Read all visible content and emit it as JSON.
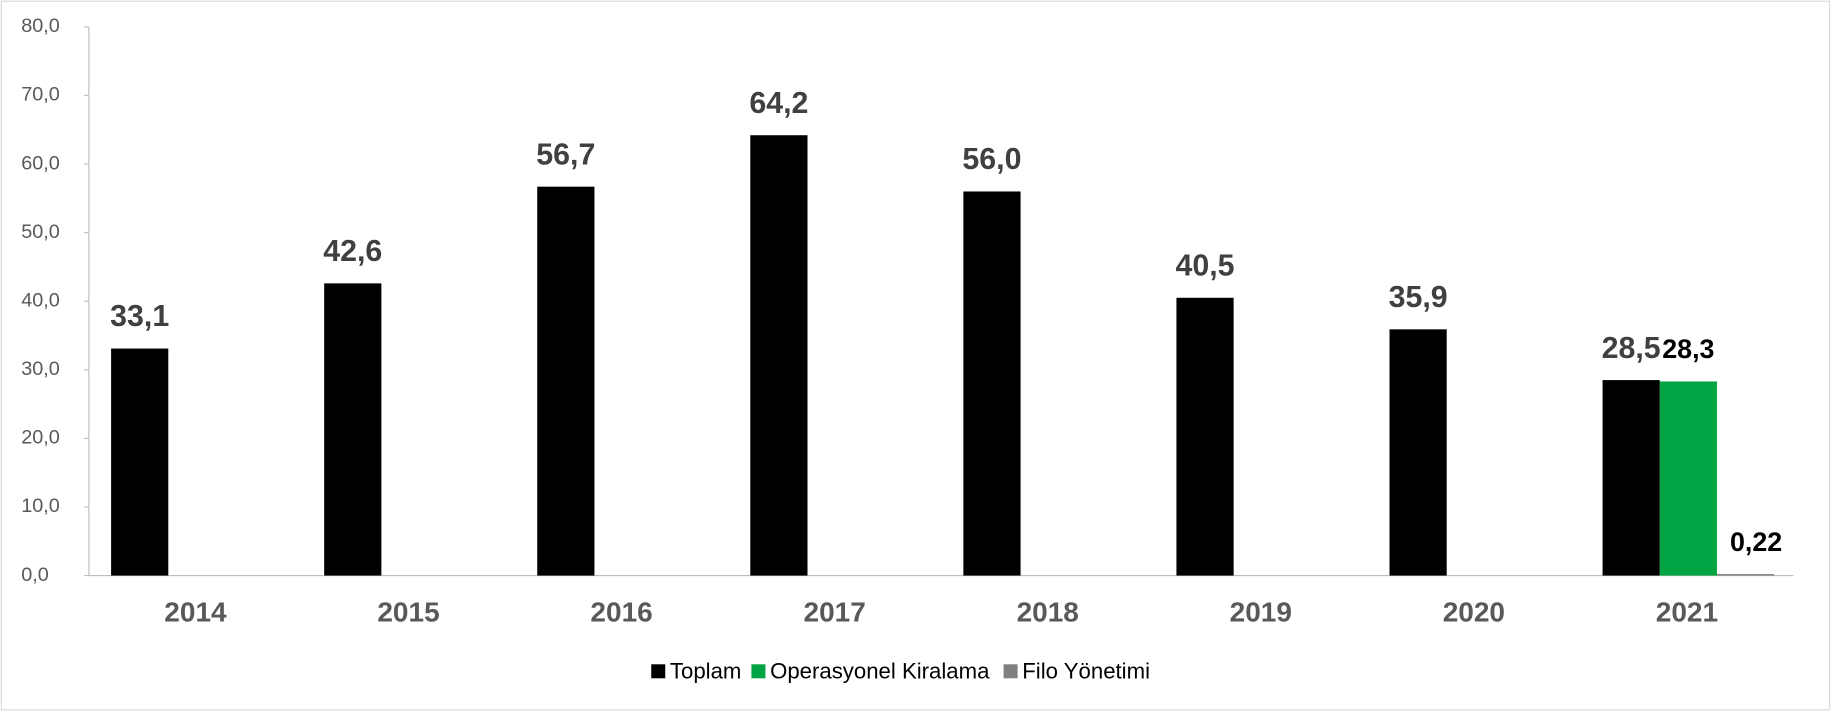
{
  "chart_data": {
    "type": "bar",
    "categories": [
      "2014",
      "2015",
      "2016",
      "2017",
      "2018",
      "2019",
      "2020",
      "2021"
    ],
    "series": [
      {
        "name": "Toplam",
        "color": "#000000",
        "values": [
          33.1,
          42.6,
          56.7,
          64.2,
          56.0,
          40.5,
          35.9,
          28.5
        ],
        "value_labels": [
          "33,1",
          "42,6",
          "56,7",
          "64,2",
          "56,0",
          "40,5",
          "35,9",
          "28,5"
        ]
      },
      {
        "name": "Operasyonel Kiralama",
        "color": "#00a443",
        "values": [
          null,
          null,
          null,
          null,
          null,
          null,
          null,
          28.3
        ],
        "value_labels": [
          null,
          null,
          null,
          null,
          null,
          null,
          null,
          "28,3"
        ]
      },
      {
        "name": "Filo Yönetimi",
        "color": "#808080",
        "values": [
          null,
          null,
          null,
          null,
          null,
          null,
          null,
          0.22
        ],
        "value_labels": [
          null,
          null,
          null,
          null,
          null,
          null,
          null,
          "0,22"
        ]
      }
    ],
    "ylim": [
      0,
      80
    ],
    "yticks": [
      {
        "value": 0,
        "label": "0,0"
      },
      {
        "value": 10,
        "label": "10,0"
      },
      {
        "value": 20,
        "label": "20,0"
      },
      {
        "value": 30,
        "label": "30,0"
      },
      {
        "value": 40,
        "label": "40,0"
      },
      {
        "value": 50,
        "label": "50,0"
      },
      {
        "value": 60,
        "label": "60,0"
      },
      {
        "value": 70,
        "label": "70,0"
      },
      {
        "value": 80,
        "label": "80,0"
      }
    ],
    "legend": "bottom"
  }
}
